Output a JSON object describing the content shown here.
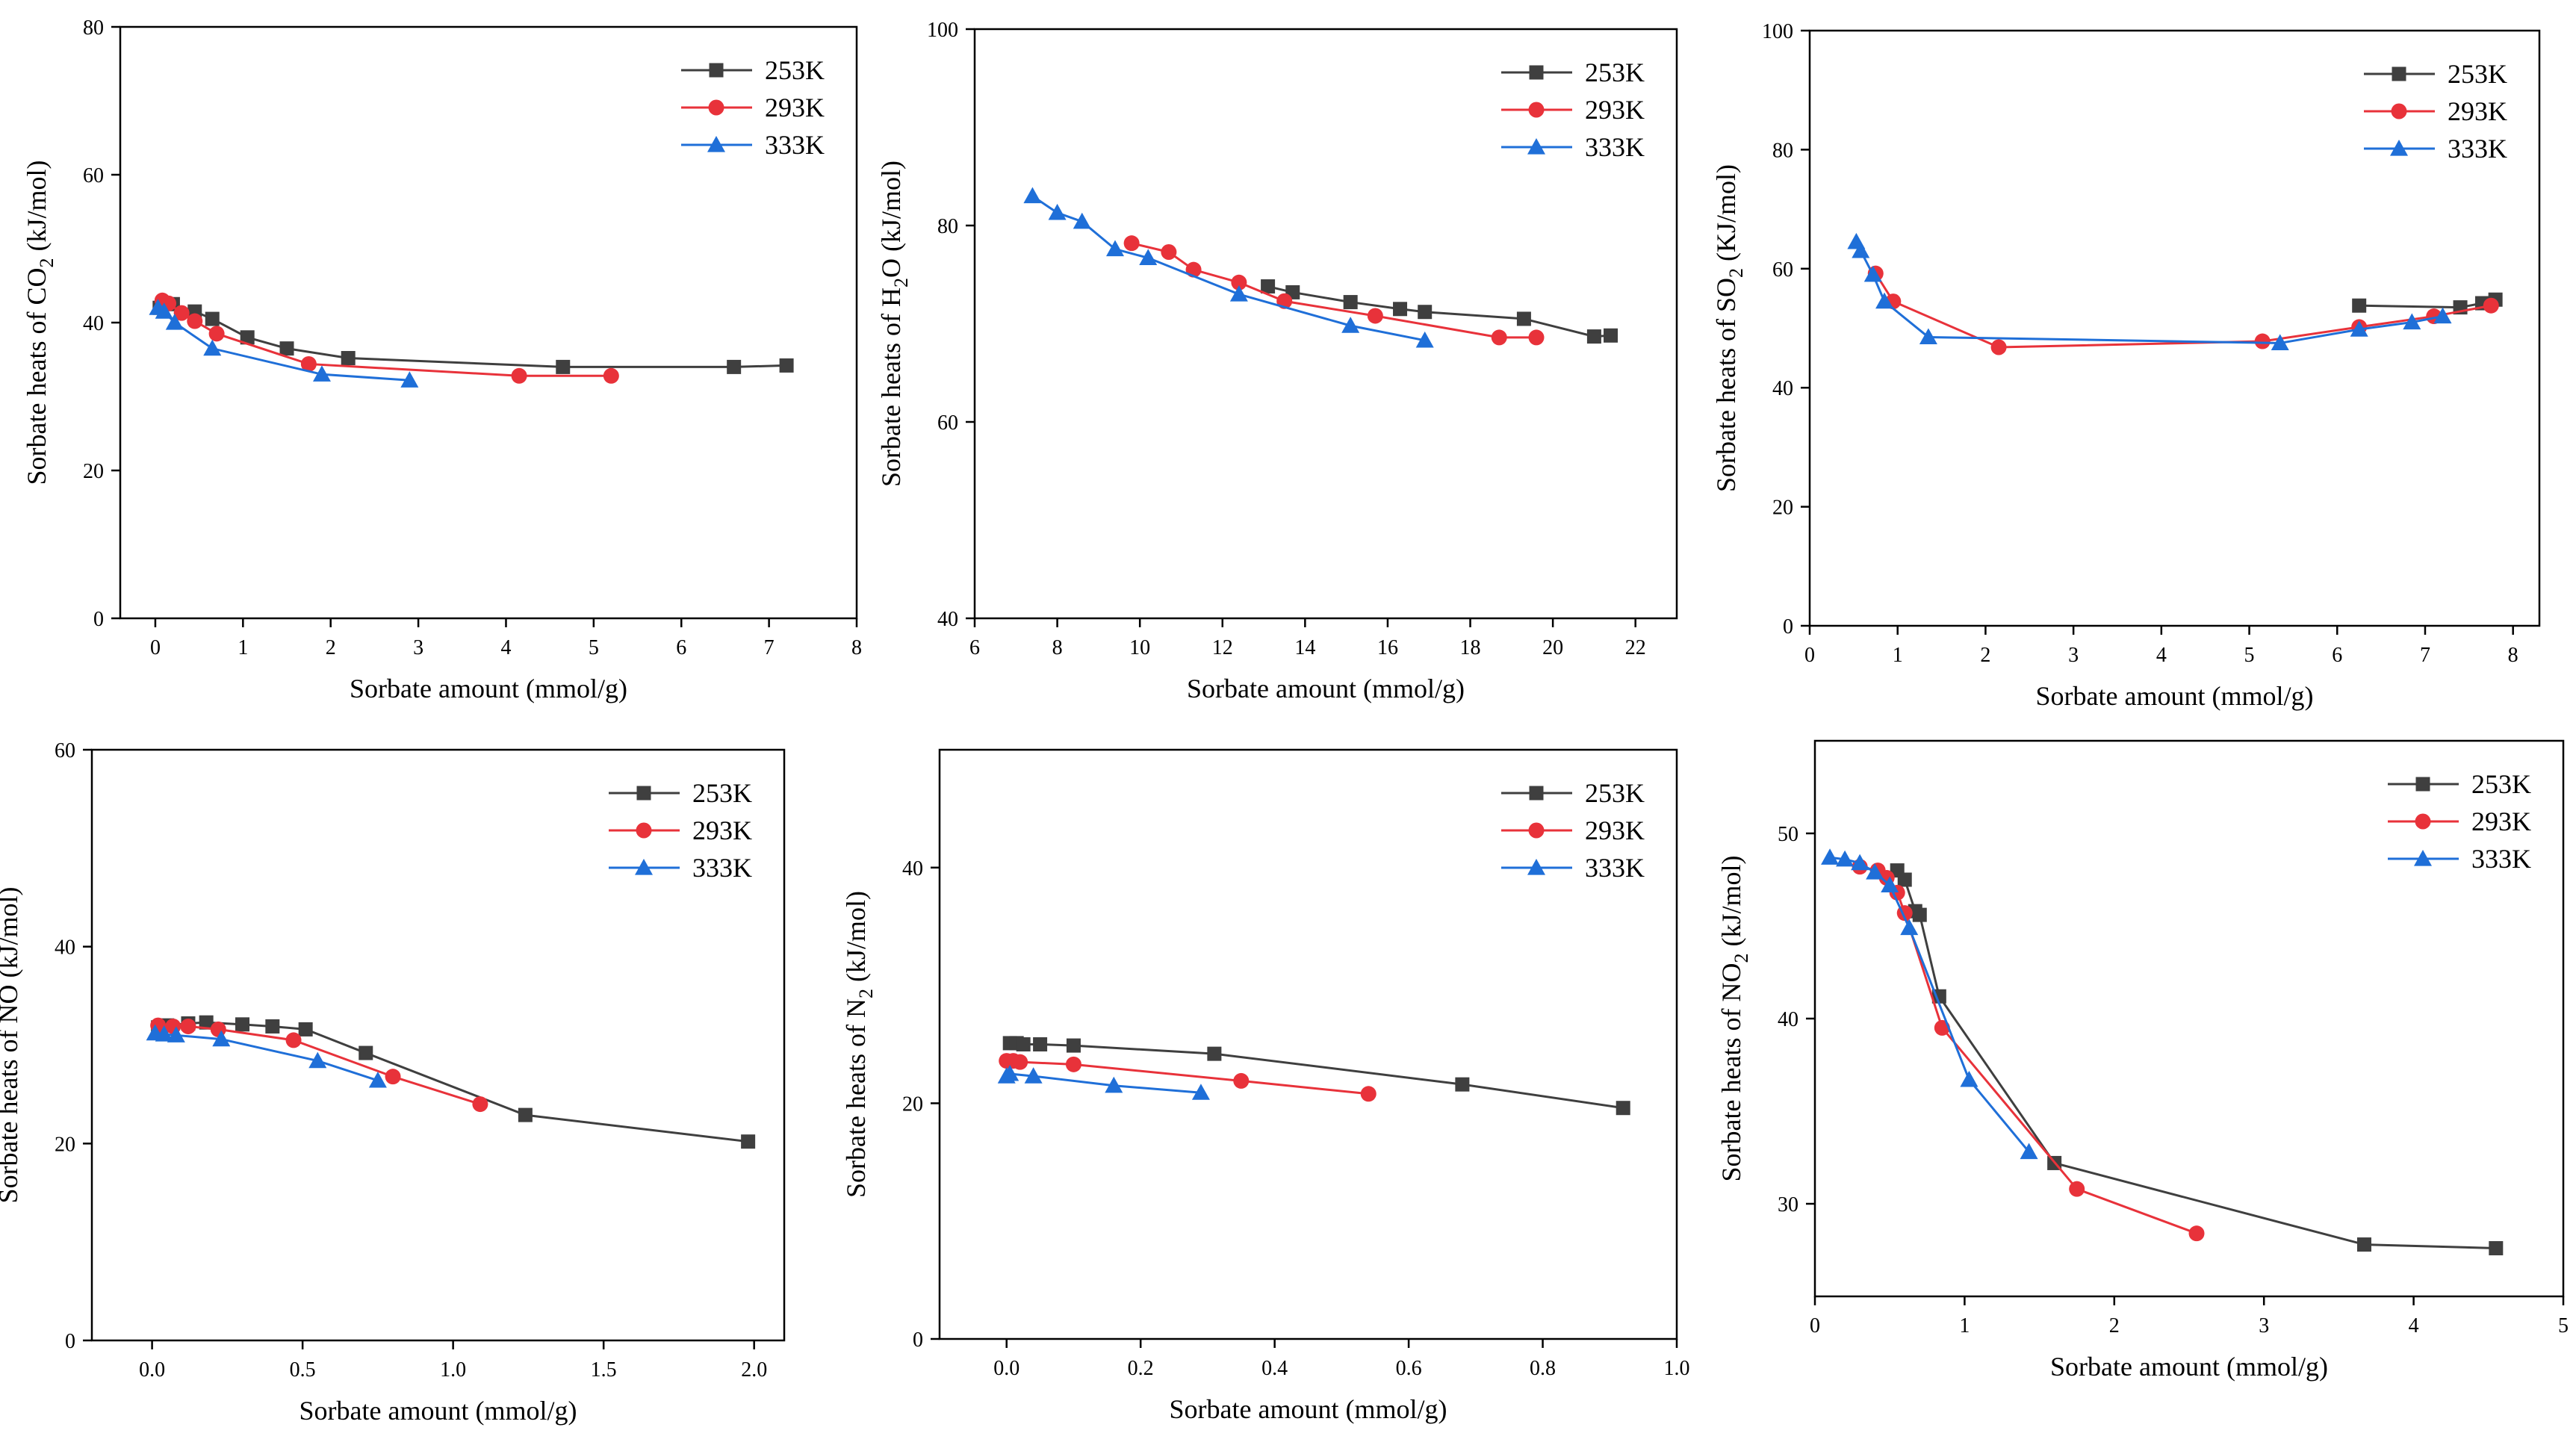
{
  "figure": {
    "colors": {
      "253K": "#3f3f3f",
      "293K": "#e8323a",
      "333K": "#1f6fd8"
    },
    "marker_shapes": {
      "253K": "square",
      "293K": "circle",
      "333K": "triangle"
    }
  },
  "chart_data": [
    {
      "id": "co2",
      "type": "line",
      "title": "",
      "xlabel": "Sorbate amount (mmol/g)",
      "ylabel": {
        "pre": "Sorbate heats of CO",
        "sub": "2",
        "post": " (kJ/mol)"
      },
      "xlim": [
        -0.4,
        8
      ],
      "ylim": [
        0,
        80
      ],
      "xticks": [
        0,
        1,
        2,
        3,
        4,
        5,
        6,
        7,
        8
      ],
      "xtick_labels": [
        "0",
        "1",
        "2",
        "3",
        "4",
        "5",
        "6",
        "7",
        "8"
      ],
      "yticks": [
        0,
        20,
        40,
        60,
        80
      ],
      "ytick_labels": [
        "0",
        "20",
        "40",
        "60",
        "80"
      ],
      "legend_position": "top-right",
      "series": [
        {
          "name": "253K",
          "x": [
            0.05,
            0.2,
            0.45,
            0.65,
            1.05,
            1.5,
            2.2,
            4.65,
            6.6,
            7.2
          ],
          "y": [
            42,
            42.5,
            41.5,
            40.5,
            38,
            36.5,
            35.2,
            34,
            34,
            34.2
          ]
        },
        {
          "name": "293K",
          "x": [
            0.08,
            0.15,
            0.3,
            0.45,
            0.7,
            1.75,
            4.15,
            5.2
          ],
          "y": [
            43,
            42.6,
            41.3,
            40.2,
            38.5,
            34.4,
            32.8,
            32.8
          ]
        },
        {
          "name": "333K",
          "x": [
            0.03,
            0.1,
            0.22,
            0.65,
            1.9,
            2.9
          ],
          "y": [
            42,
            41.5,
            40,
            36.5,
            33,
            32.2
          ]
        }
      ]
    },
    {
      "id": "h2o",
      "type": "line",
      "title": "",
      "xlabel": "Sorbate amount (mmol/g)",
      "ylabel": {
        "pre": "Sorbate heats of H",
        "sub": "2",
        "post": "O (kJ/mol)"
      },
      "xlim": [
        6,
        23
      ],
      "ylim": [
        40,
        100
      ],
      "xticks": [
        6,
        8,
        10,
        12,
        14,
        16,
        18,
        20,
        22
      ],
      "xtick_labels": [
        "6",
        "8",
        "10",
        "12",
        "14",
        "16",
        "18",
        "20",
        "22"
      ],
      "yticks": [
        40,
        60,
        80,
        100
      ],
      "ytick_labels": [
        "40",
        "60",
        "80",
        "100"
      ],
      "legend_position": "top-right",
      "series": [
        {
          "name": "253K",
          "x": [
            13.1,
            13.7,
            15.1,
            16.3,
            16.9,
            19.3,
            21.0,
            21.4
          ],
          "y": [
            73.8,
            73.2,
            72.2,
            71.5,
            71.2,
            70.5,
            68.7,
            68.8
          ]
        },
        {
          "name": "293K",
          "x": [
            9.8,
            10.7,
            11.3,
            12.4,
            13.5,
            15.7,
            18.7,
            19.6
          ],
          "y": [
            78.2,
            77.3,
            75.5,
            74.2,
            72.3,
            70.8,
            68.6,
            68.6
          ]
        },
        {
          "name": "333K",
          "x": [
            7.4,
            8.0,
            8.6,
            9.4,
            10.2,
            12.4,
            15.1,
            16.9
          ],
          "y": [
            83,
            81.3,
            80.4,
            77.6,
            76.7,
            73.0,
            69.8,
            68.3
          ]
        }
      ]
    },
    {
      "id": "so2",
      "type": "line",
      "title": "",
      "xlabel": "Sorbate amount (mmol/g)",
      "ylabel": {
        "pre": "Sorbate heats of SO",
        "sub": "2",
        "post": " (KJ/mol)"
      },
      "xlim": [
        0,
        8.3
      ],
      "ylim": [
        0,
        100
      ],
      "xticks": [
        0,
        1,
        2,
        3,
        4,
        5,
        6,
        7,
        8
      ],
      "xtick_labels": [
        "0",
        "1",
        "2",
        "3",
        "4",
        "5",
        "6",
        "7",
        "8"
      ],
      "yticks": [
        0,
        20,
        40,
        60,
        80,
        100
      ],
      "ytick_labels": [
        "0",
        "20",
        "40",
        "60",
        "80",
        "100"
      ],
      "legend_position": "top-right",
      "series": [
        {
          "name": "253K",
          "x": [
            6.25,
            7.4,
            7.65,
            7.8
          ],
          "y": [
            53.8,
            53.5,
            54.2,
            54.8
          ]
        },
        {
          "name": "293K",
          "x": [
            0.75,
            0.95,
            2.15,
            5.15,
            6.25,
            7.1,
            7.75
          ],
          "y": [
            59.2,
            54.5,
            46.8,
            47.8,
            50.2,
            52.0,
            53.8
          ]
        },
        {
          "name": "333K",
          "x": [
            0.53,
            0.58,
            0.72,
            0.85,
            1.35,
            5.35,
            6.25,
            6.85,
            7.2
          ],
          "y": [
            64.5,
            63,
            59,
            54.5,
            48.5,
            47.5,
            49.8,
            51,
            52
          ]
        }
      ]
    },
    {
      "id": "no",
      "type": "line",
      "title": "",
      "xlabel": "Sorbate amount (mmol/g)",
      "ylabel": {
        "pre": "Sorbate heats of NO (kJ/mol)",
        "sub": "",
        "post": ""
      },
      "xlim": [
        -0.2,
        2.1
      ],
      "ylim": [
        0,
        60
      ],
      "xticks": [
        0,
        0.5,
        1.0,
        1.5,
        2.0
      ],
      "xtick_labels": [
        "0.0",
        "0.5",
        "1.0",
        "1.5",
        "2.0"
      ],
      "yticks": [
        0,
        20,
        40,
        60
      ],
      "ytick_labels": [
        "0",
        "20",
        "40",
        "60"
      ],
      "legend_position": "top-right",
      "series": [
        {
          "name": "253K",
          "x": [
            0.02,
            0.05,
            0.12,
            0.18,
            0.3,
            0.4,
            0.51,
            0.71,
            1.24,
            1.98
          ],
          "y": [
            31.8,
            32.0,
            32.2,
            32.3,
            32.1,
            31.9,
            31.6,
            29.2,
            22.9,
            20.2
          ]
        },
        {
          "name": "293K",
          "x": [
            0.02,
            0.07,
            0.12,
            0.22,
            0.47,
            0.8,
            1.09
          ],
          "y": [
            32.0,
            31.9,
            31.9,
            31.6,
            30.5,
            26.8,
            24.0
          ]
        },
        {
          "name": "333K",
          "x": [
            0.01,
            0.04,
            0.08,
            0.23,
            0.55,
            0.75
          ],
          "y": [
            31.2,
            31.1,
            31.0,
            30.6,
            28.4,
            26.4
          ]
        }
      ]
    },
    {
      "id": "n2",
      "type": "line",
      "title": "",
      "xlabel": "Sorbate amount (mmol/g)",
      "ylabel": {
        "pre": "Sorbate heats of N",
        "sub": "2",
        "post": " (kJ/mol)"
      },
      "xlim": [
        -0.1,
        1.0
      ],
      "ylim": [
        0,
        50
      ],
      "xticks": [
        0,
        0.2,
        0.4,
        0.6,
        0.8,
        1.0
      ],
      "xtick_labels": [
        "0.0",
        "0.2",
        "0.4",
        "0.6",
        "0.8",
        "1.0"
      ],
      "yticks": [
        0,
        20,
        40
      ],
      "ytick_labels": [
        "0",
        "20",
        "40"
      ],
      "legend_position": "top-right",
      "series": [
        {
          "name": "253K",
          "x": [
            0.005,
            0.015,
            0.025,
            0.05,
            0.1,
            0.31,
            0.68,
            0.92
          ],
          "y": [
            25.1,
            25.1,
            25.0,
            25.0,
            24.9,
            24.2,
            21.6,
            19.6
          ]
        },
        {
          "name": "293K",
          "x": [
            0.0,
            0.01,
            0.02,
            0.1,
            0.35,
            0.54
          ],
          "y": [
            23.6,
            23.6,
            23.5,
            23.3,
            21.9,
            20.8
          ]
        },
        {
          "name": "333K",
          "x": [
            0.0,
            0.005,
            0.04,
            0.16,
            0.29
          ],
          "y": [
            22.3,
            22.5,
            22.3,
            21.5,
            20.9
          ]
        }
      ]
    },
    {
      "id": "no2",
      "type": "line",
      "title": "",
      "xlabel": "Sorbate amount (mmol/g)",
      "ylabel": {
        "pre": "Sorbate heats of NO",
        "sub": "2",
        "post": " (kJ/mol)"
      },
      "xlim": [
        0,
        5
      ],
      "ylim": [
        25,
        55
      ],
      "xticks": [
        0,
        1,
        2,
        3,
        4,
        5
      ],
      "xtick_labels": [
        "0",
        "1",
        "2",
        "3",
        "4",
        "5"
      ],
      "yticks": [
        30,
        40,
        50
      ],
      "ytick_labels": [
        "30",
        "40",
        "50"
      ],
      "legend_position": "top-right",
      "series": [
        {
          "name": "253K",
          "x": [
            0.55,
            0.6,
            0.67,
            0.7,
            0.83,
            1.6,
            3.67,
            4.55
          ],
          "y": [
            48.0,
            47.5,
            45.8,
            45.6,
            41.2,
            32.2,
            27.8,
            27.6
          ]
        },
        {
          "name": "293K",
          "x": [
            0.3,
            0.42,
            0.48,
            0.55,
            0.6,
            0.85,
            1.75,
            2.55
          ],
          "y": [
            48.2,
            48.0,
            47.6,
            46.8,
            45.7,
            39.5,
            30.8,
            28.4
          ]
        },
        {
          "name": "333K",
          "x": [
            0.1,
            0.2,
            0.3,
            0.4,
            0.5,
            0.63,
            1.03,
            1.43
          ],
          "y": [
            48.7,
            48.6,
            48.4,
            47.9,
            47.2,
            44.9,
            36.7,
            32.8
          ]
        }
      ]
    }
  ]
}
